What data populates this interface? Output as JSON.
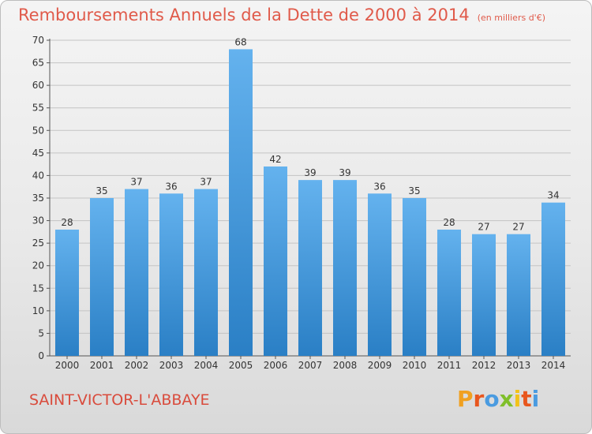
{
  "title": "Remboursements Annuels de la Dette de 2000 à 2014",
  "unit_note": "(en milliers d'€)",
  "commune": "SAINT-VICTOR-L'ABBAYE",
  "logo": {
    "letters": [
      "P",
      "r",
      "o",
      "x",
      "i",
      "t",
      "i"
    ],
    "colors": [
      "#f0a020",
      "#e8561e",
      "#4a9be0",
      "#7fbf2a",
      "#f2c21a",
      "#e8561e",
      "#4a9be0"
    ]
  },
  "colors": {
    "bar_top": "#64b2ee",
    "bar_bottom": "#2a7fc5",
    "title": "#e05a4a"
  },
  "chart_data": {
    "type": "bar",
    "categories": [
      "2000",
      "2001",
      "2002",
      "2003",
      "2004",
      "2005",
      "2006",
      "2007",
      "2008",
      "2009",
      "2010",
      "2011",
      "2012",
      "2013",
      "2014"
    ],
    "values": [
      28,
      35,
      37,
      36,
      37,
      68,
      42,
      39,
      39,
      36,
      35,
      28,
      27,
      27,
      34
    ],
    "ylim": [
      0,
      70
    ],
    "yticks": [
      0,
      5,
      10,
      15,
      20,
      25,
      30,
      35,
      40,
      45,
      50,
      55,
      60,
      65,
      70
    ],
    "grid": true,
    "data_labels": true
  }
}
